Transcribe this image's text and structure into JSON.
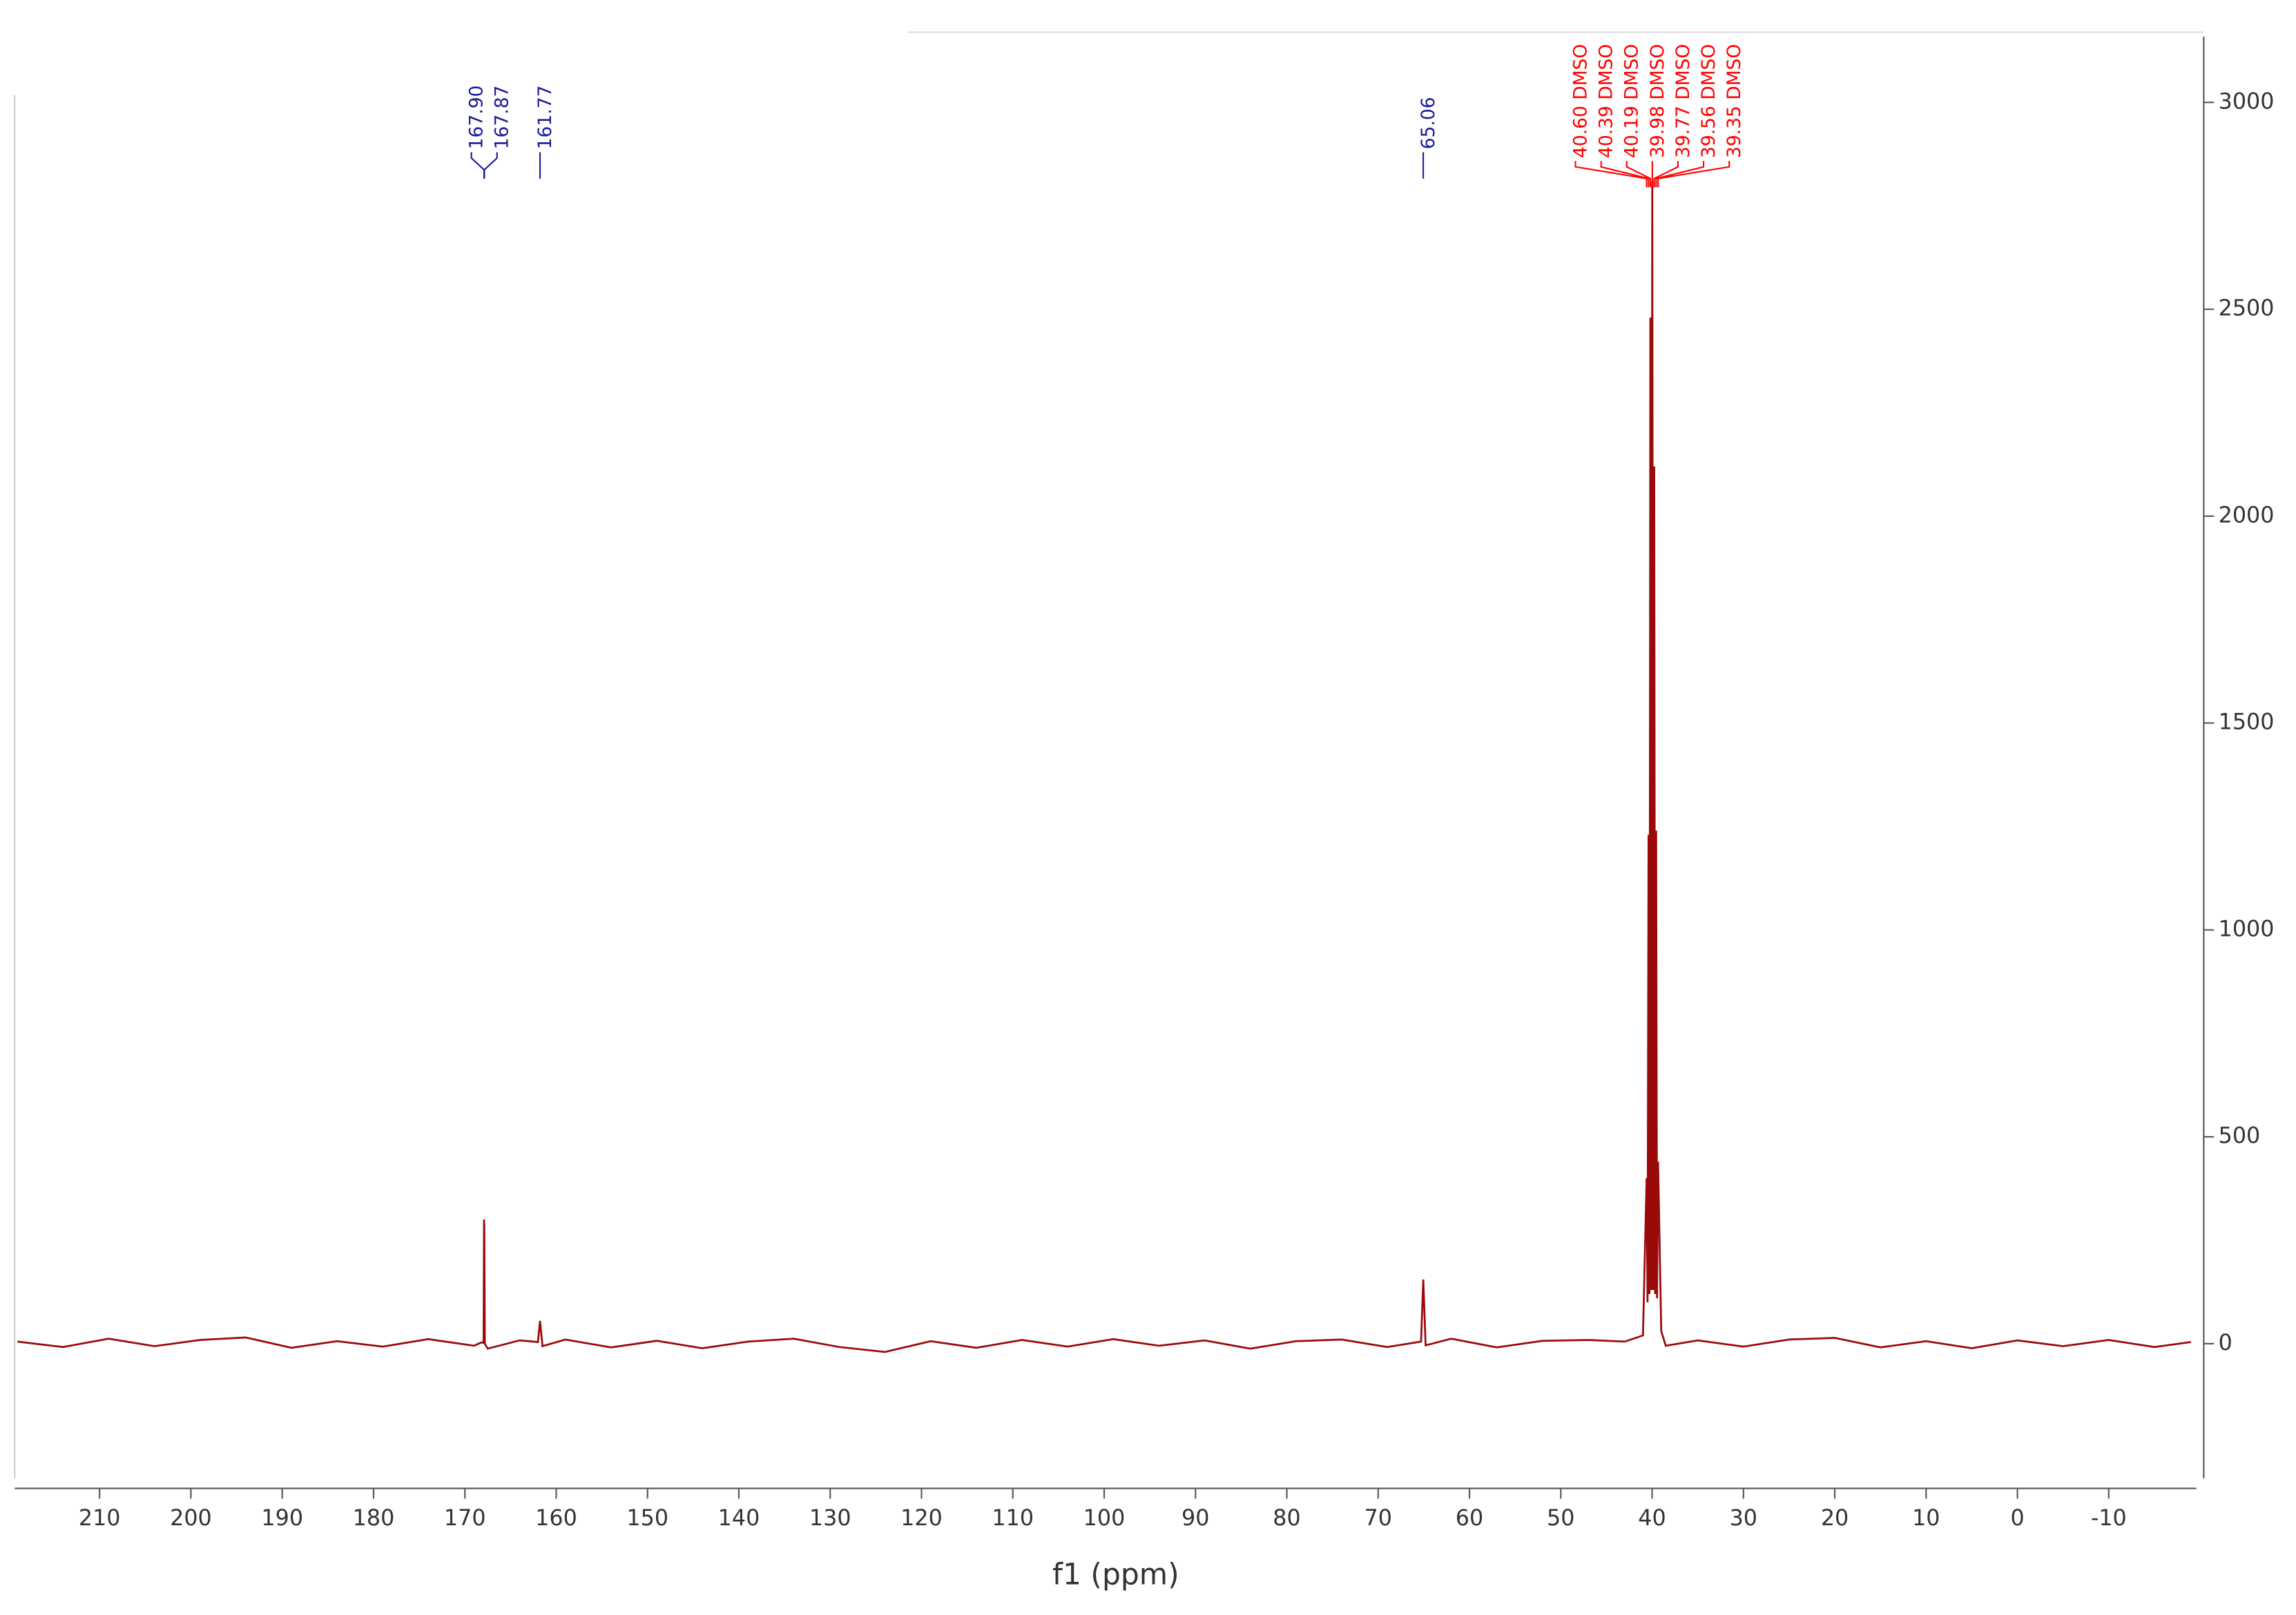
{
  "chart_data": {
    "type": "line",
    "x_label": "f1 (ppm)",
    "color": "#9b0a0a",
    "xlim": [
      219.3,
      -19.6
    ],
    "xticks": [
      210,
      200,
      190,
      180,
      170,
      160,
      150,
      140,
      130,
      120,
      110,
      100,
      90,
      80,
      70,
      60,
      50,
      40,
      30,
      20,
      10,
      0,
      -10
    ],
    "ylim": [
      -325,
      3159
    ],
    "yticks": [
      0,
      500,
      1000,
      1500,
      2000,
      2500,
      3000
    ],
    "x": [
      219,
      214,
      209,
      204,
      199,
      194,
      189,
      184,
      179,
      174,
      169,
      168.2,
      167.95,
      167.9,
      167.885,
      167.87,
      167.82,
      167.5,
      164,
      162.0,
      161.77,
      161.5,
      159,
      154,
      149,
      144,
      139,
      134,
      129,
      124,
      119,
      114,
      109,
      104,
      99,
      94,
      89,
      84,
      79,
      74,
      69,
      65.3,
      65.06,
      64.8,
      62,
      57,
      52,
      47,
      43,
      41.0,
      40.6,
      40.5,
      40.39,
      40.29,
      40.19,
      40.09,
      39.98,
      39.88,
      39.77,
      39.67,
      39.56,
      39.46,
      39.35,
      39.0,
      38.5,
      35,
      30,
      25,
      20,
      15,
      10,
      5,
      0,
      -5,
      -10,
      -15,
      -19
    ],
    "values": [
      5,
      -8,
      12,
      -6,
      9,
      15,
      -10,
      6,
      -7,
      11,
      -5,
      3,
      2,
      300,
      150,
      290,
      0,
      -12,
      8,
      4,
      55,
      -6,
      10,
      -9,
      7,
      -11,
      5,
      12,
      -8,
      -20,
      6,
      -10,
      9,
      -7,
      11,
      -5,
      8,
      -12,
      6,
      10,
      -8,
      5,
      155,
      -4,
      12,
      -9,
      7,
      9,
      5,
      20,
      400,
      100,
      1230,
      120,
      2480,
      130,
      2810,
      130,
      2120,
      120,
      1240,
      110,
      440,
      30,
      -5,
      8,
      -7,
      10,
      14,
      -9,
      6,
      -11,
      8,
      -6,
      9,
      -8,
      4
    ],
    "peak_labels": [
      {
        "value": 167.9,
        "label": "167.90",
        "color": "#1a1a9c"
      },
      {
        "value": 167.87,
        "label": "167.87",
        "color": "#1a1a9c"
      },
      {
        "value": 161.77,
        "label": "161.77",
        "color": "#1a1a9c"
      },
      {
        "value": 65.06,
        "label": "65.06",
        "color": "#1a1a9c"
      },
      {
        "value": 40.6,
        "label": "40.60 DMSO",
        "color": "#ff0000"
      },
      {
        "value": 40.39,
        "label": "40.39 DMSO",
        "color": "#ff0000"
      },
      {
        "value": 40.19,
        "label": "40.19 DMSO",
        "color": "#ff0000"
      },
      {
        "value": 39.98,
        "label": "39.98 DMSO",
        "color": "#ff0000"
      },
      {
        "value": 39.77,
        "label": "39.77 DMSO",
        "color": "#ff0000"
      },
      {
        "value": 39.56,
        "label": "39.56 DMSO",
        "color": "#ff0000"
      },
      {
        "value": 39.35,
        "label": "39.35 DMSO",
        "color": "#ff0000"
      }
    ]
  }
}
